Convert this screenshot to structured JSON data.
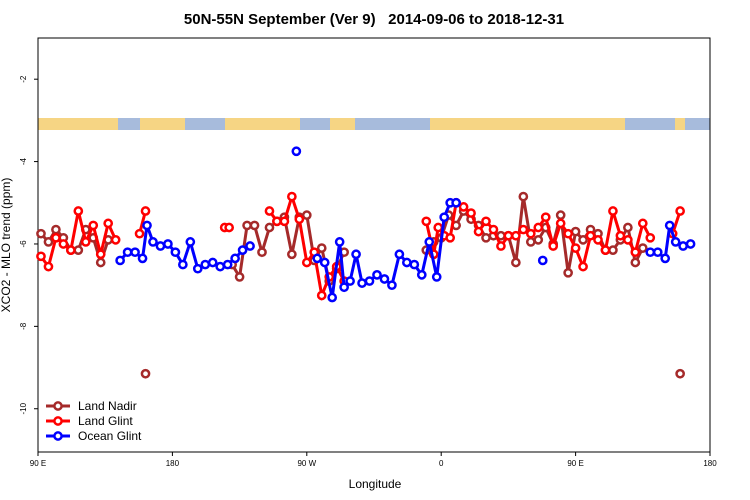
{
  "chart_data": {
    "type": "line",
    "title": "50N-55N September (Ver 9)   2014-09-06 to 2018-12-31",
    "x_label": "Longitude",
    "y_label": "XCO2 - MLO trend (ppm)",
    "xlim": [
      90,
      540
    ],
    "ylim": [
      -11.05,
      -1
    ],
    "xticks": [
      {
        "value": 90,
        "label": "90 E"
      },
      180,
      {
        "value": 270,
        "label": "90 W"
      },
      {
        "value": 360,
        "label": "0"
      },
      {
        "value": 450,
        "label": "90 E"
      },
      {
        "value": 540,
        "label": "180"
      }
    ],
    "yticks": [
      -2,
      -4,
      -6,
      -8,
      -10
    ],
    "legend": "bottom-left",
    "series": [
      {
        "name": "Land Nadir",
        "color": "#a52a2a",
        "x": [
          92,
          97,
          102,
          107,
          112,
          117,
          122,
          127,
          132,
          137,
          142,
          162,
          167,
          220,
          225,
          230,
          235,
          240,
          245,
          250,
          255,
          260,
          265,
          270,
          275,
          280,
          285,
          290,
          295,
          300,
          350,
          355,
          360,
          365,
          370,
          375,
          380,
          385,
          390,
          395,
          400,
          405,
          410,
          415,
          420,
          425,
          430,
          435,
          440,
          445,
          450,
          455,
          460,
          465,
          470,
          475,
          480,
          485,
          490,
          495,
          500,
          520
        ],
        "values": [
          -5.75,
          -5.95,
          -5.65,
          -5.85,
          -6.15,
          -6.15,
          -5.65,
          -5.85,
          -6.45,
          -5.9,
          null,
          -9.15,
          null,
          -6.5,
          -6.8,
          -5.55,
          -5.55,
          -6.2,
          -5.6,
          -5.45,
          -5.35,
          -6.25,
          -5.35,
          -5.3,
          -6.4,
          -6.1,
          -6.9,
          -6.6,
          -6.2,
          null,
          -6.15,
          -5.95,
          -5.85,
          -5.3,
          -5.55,
          -5.2,
          -5.4,
          -5.55,
          -5.85,
          -5.8,
          -5.8,
          -5.8,
          -6.45,
          -4.85,
          -5.95,
          -5.9,
          -5.6,
          -6.0,
          -5.3,
          -6.7,
          -5.7,
          -5.9,
          -5.65,
          -5.75,
          -6.15,
          -6.15,
          -5.9,
          -5.6,
          -6.45,
          -6.1,
          null,
          -9.15
        ]
      },
      {
        "name": "Land Glint",
        "color": "#ff0000",
        "x": [
          92,
          97,
          102,
          107,
          112,
          117,
          122,
          127,
          132,
          137,
          142,
          147,
          158,
          162,
          167,
          215,
          218,
          222,
          245,
          250,
          255,
          260,
          265,
          270,
          275,
          280,
          285,
          290,
          295,
          300,
          350,
          355,
          358,
          362,
          366,
          370,
          375,
          380,
          385,
          390,
          395,
          400,
          405,
          410,
          415,
          420,
          425,
          430,
          435,
          440,
          445,
          450,
          455,
          460,
          465,
          470,
          475,
          480,
          485,
          490,
          495,
          500,
          505,
          515,
          520
        ],
        "values": [
          -6.3,
          -6.55,
          -5.85,
          -6.0,
          -6.15,
          -5.2,
          -5.95,
          -5.55,
          -6.25,
          -5.5,
          -5.9,
          null,
          -5.75,
          -5.2,
          null,
          -5.6,
          -5.6,
          null,
          -5.2,
          -5.45,
          -5.45,
          -4.85,
          -5.4,
          -6.45,
          -6.2,
          -7.25,
          -6.8,
          -6.55,
          -6.9,
          null,
          -5.45,
          -6.25,
          -5.6,
          -5.8,
          -5.85,
          -5.0,
          -5.1,
          -5.25,
          -5.7,
          -5.45,
          -5.65,
          -6.05,
          -5.8,
          -5.8,
          -5.65,
          -5.75,
          -5.6,
          -5.35,
          -6.05,
          -5.5,
          -5.75,
          -6.1,
          -6.55,
          -5.8,
          -5.9,
          -6.15,
          -5.2,
          -5.8,
          -5.9,
          -6.2,
          -5.5,
          -5.85,
          null,
          -5.75,
          -5.2
        ]
      },
      {
        "name": "Ocean Glint",
        "color": "#0000ff",
        "x": [
          145,
          150,
          155,
          160,
          163,
          167,
          172,
          177,
          182,
          187,
          192,
          197,
          202,
          207,
          212,
          217,
          222,
          227,
          232,
          245,
          263,
          270,
          277,
          282,
          287,
          292,
          295,
          299,
          303,
          307,
          312,
          317,
          322,
          327,
          332,
          337,
          342,
          347,
          352,
          357,
          362,
          366,
          370,
          375,
          428,
          440,
          500,
          505,
          510,
          513,
          517,
          522,
          527
        ],
        "values": [
          -6.4,
          -6.2,
          -6.2,
          -6.35,
          -5.55,
          -5.95,
          -6.05,
          -6.0,
          -6.2,
          -6.5,
          -5.95,
          -6.6,
          -6.5,
          -6.45,
          -6.55,
          -6.5,
          -6.35,
          -6.15,
          -6.05,
          null,
          -3.75,
          null,
          -6.35,
          -6.45,
          -7.3,
          -5.95,
          -7.05,
          -6.9,
          -6.25,
          -6.95,
          -6.9,
          -6.75,
          -6.85,
          -7.0,
          -6.25,
          -6.45,
          -6.5,
          -6.75,
          -5.95,
          -6.8,
          -5.35,
          -5.0,
          -5.0,
          null,
          -6.4,
          null,
          -6.2,
          -6.2,
          -6.35,
          -5.55,
          -5.95,
          -6.05,
          -6.0
        ]
      }
    ]
  }
}
